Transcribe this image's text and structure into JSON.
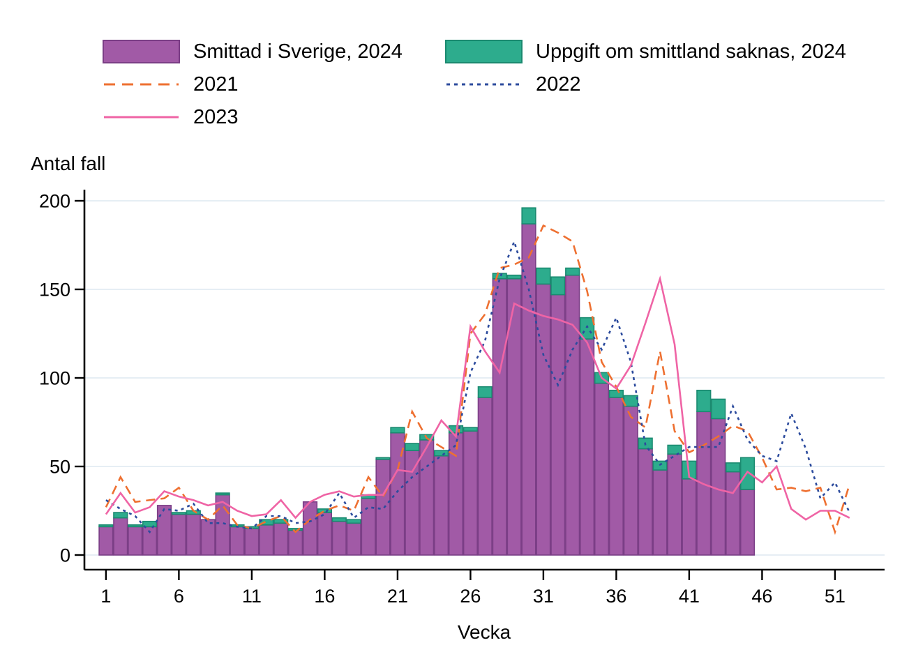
{
  "page": {
    "background": "#ffffff"
  },
  "legend": {
    "items": [
      {
        "label": "Smittad i Sverige, 2024",
        "style": "box",
        "color": "#a15aa6",
        "border": "#7b3e86"
      },
      {
        "label": "Uppgift om smittland saknas, 2024",
        "style": "box",
        "color": "#2dac8d",
        "border": "#1b8a70"
      },
      {
        "label": "2021",
        "style": "dashed",
        "color": "#ee7031"
      },
      {
        "label": "2022",
        "style": "dotted",
        "color": "#2c4b9d"
      },
      {
        "label": "2023",
        "style": "solid",
        "color": "#ef64a5"
      }
    ]
  },
  "chart_data": {
    "type": "bar+line",
    "title": "",
    "x_axis": {
      "title": "Vecka",
      "ticks": [
        1,
        6,
        11,
        16,
        21,
        26,
        31,
        36,
        41,
        46,
        51
      ],
      "range": [
        1,
        52
      ]
    },
    "y_axis": {
      "title": "Antal fall",
      "ticks": [
        0,
        50,
        100,
        150,
        200
      ],
      "range": [
        0,
        200
      ]
    },
    "style": {
      "gridline": "#e6eef4",
      "axis": "#000000"
    },
    "legend_position": "top, two columns",
    "bars_cover_weeks": "1-45",
    "series": [
      {
        "name": "Smittad i Sverige, 2024",
        "type": "bar-stacked",
        "color": "#a15aa6",
        "border": "#7b3e86",
        "values": [
          16,
          21,
          16,
          16,
          28,
          23,
          23,
          20,
          34,
          16,
          15,
          17,
          18,
          14,
          30,
          24,
          19,
          18,
          32,
          54,
          69,
          59,
          65,
          56,
          69,
          70,
          89,
          156,
          156,
          187,
          153,
          147,
          158,
          122,
          97,
          89,
          84,
          60,
          48,
          57,
          43,
          81,
          77,
          47,
          37
        ]
      },
      {
        "name": "Uppgift om smittland saknas, 2024",
        "type": "bar-stacked",
        "color": "#2dac8d",
        "border": "#1b8a70",
        "values": [
          1,
          3,
          1,
          3,
          0,
          1,
          2,
          0,
          1,
          1,
          1,
          3,
          2,
          1,
          0,
          2,
          2,
          2,
          2,
          1,
          3,
          4,
          3,
          3,
          4,
          2,
          6,
          3,
          2,
          9,
          9,
          10,
          4,
          12,
          6,
          4,
          6,
          6,
          5,
          5,
          10,
          12,
          11,
          5,
          18
        ]
      },
      {
        "name": "2021",
        "type": "line",
        "style": "dashed",
        "color": "#ee7031",
        "values": [
          27,
          44,
          30,
          31,
          32,
          38,
          25,
          20,
          28,
          17,
          15,
          19,
          22,
          13,
          20,
          25,
          28,
          25,
          44,
          33,
          48,
          81,
          66,
          61,
          56,
          125,
          136,
          162,
          164,
          168,
          186,
          182,
          177,
          149,
          109,
          95,
          78,
          72,
          115,
          70,
          58,
          62,
          67,
          73,
          70,
          55,
          37,
          38,
          36,
          38,
          13,
          40
        ]
      },
      {
        "name": "2022",
        "type": "line",
        "style": "dotted",
        "color": "#2c4b9d",
        "values": [
          31,
          26,
          22,
          13,
          26,
          25,
          29,
          18,
          18,
          16,
          15,
          22,
          22,
          18,
          19,
          23,
          35,
          21,
          27,
          26,
          36,
          44,
          50,
          56,
          62,
          103,
          121,
          156,
          177,
          150,
          113,
          96,
          116,
          129,
          116,
          134,
          109,
          62,
          51,
          56,
          61,
          61,
          61,
          84,
          65,
          56,
          53,
          80,
          60,
          32,
          41,
          24
        ]
      },
      {
        "name": "2023",
        "type": "line",
        "style": "solid",
        "color": "#ef64a5",
        "values": [
          23,
          35,
          24,
          27,
          36,
          33,
          31,
          28,
          30,
          25,
          22,
          23,
          31,
          21,
          30,
          34,
          36,
          33,
          34,
          34,
          48,
          47,
          61,
          76,
          67,
          129,
          115,
          103,
          142,
          138,
          135,
          133,
          130,
          120,
          100,
          94,
          107,
          131,
          156,
          119,
          44,
          40,
          37,
          35,
          47,
          41,
          50,
          26,
          20,
          25,
          25,
          21
        ]
      }
    ]
  }
}
